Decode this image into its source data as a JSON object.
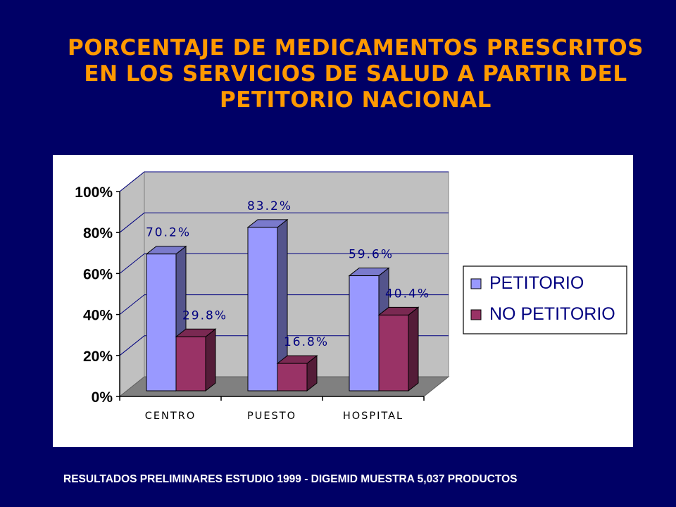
{
  "title_lines": [
    "PORCENTAJE DE MEDICAMENTOS PRESCRITOS",
    "EN LOS SERVICIOS DE SALUD A PARTIR DEL",
    "PETITORIO NACIONAL"
  ],
  "footer": "RESULTADOS PRELIMINARES ESTUDIO 1999 - DIGEMID MUESTRA 5,037 PRODUCTOS",
  "colors": {
    "background": "#000066",
    "title": "#FF9900",
    "petitorio": "#9999FF",
    "no_petitorio": "#993366",
    "plot_wall": "#C0C0C0",
    "floor": "#808080",
    "label": "#000080"
  },
  "chart_data": {
    "type": "bar",
    "categories": [
      "CENTRO",
      "PUESTO",
      "HOSPITAL"
    ],
    "series": [
      {
        "name": "PETITORIO",
        "values": [
          70.2,
          83.2,
          59.6
        ],
        "labels": [
          "70.2%",
          "83.2%",
          "59.6%"
        ]
      },
      {
        "name": "NO PETITORIO",
        "values": [
          29.8,
          16.8,
          40.4
        ],
        "labels": [
          "29.8%",
          "16.8%",
          "40.4%"
        ]
      }
    ],
    "yticks": [
      "0%",
      "20%",
      "40%",
      "60%",
      "80%",
      "100%"
    ],
    "ylim": [
      0,
      100
    ],
    "grid": true,
    "legend": "right"
  }
}
